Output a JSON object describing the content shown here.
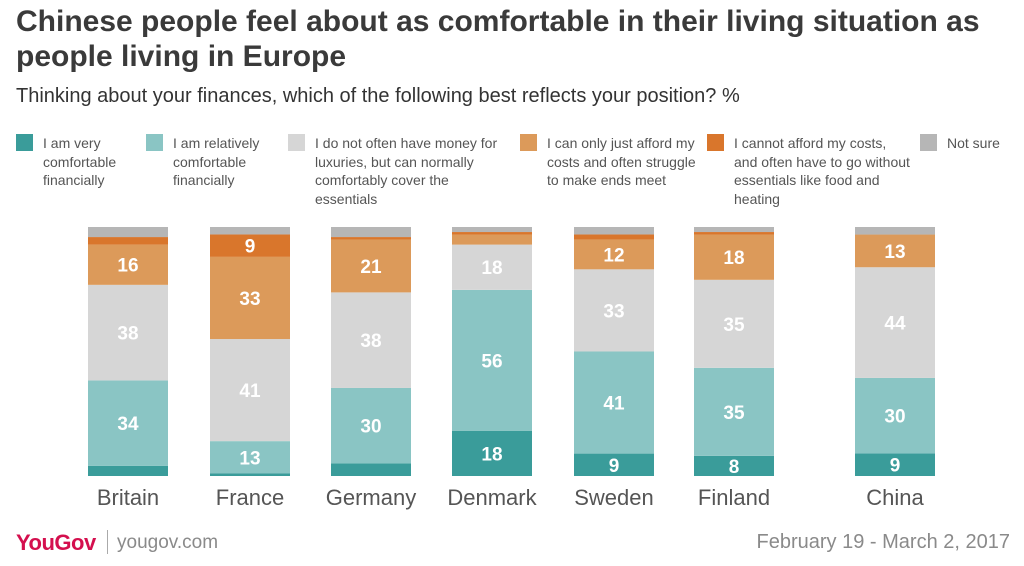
{
  "title": "Chinese people feel about as comfortable in their living situation as people living in Europe",
  "subtitle": "Thinking about your finances, which of the following best reflects your position? %",
  "legend": [
    {
      "label": "I am very comfortable financially",
      "color": "#3a9c9a"
    },
    {
      "label": "I am relatively comfortable financially",
      "color": "#8ac5c4"
    },
    {
      "label": "I do not often have money for luxuries, but can normally comfortably cover the essentials",
      "color": "#d6d6d6"
    },
    {
      "label": "I can only just afford my costs and often struggle to make ends meet",
      "color": "#dc9a5a"
    },
    {
      "label": "I cannot afford my costs, and often have to go without essentials like food and heating",
      "color": "#d9762c"
    },
    {
      "label": "Not sure",
      "color": "#b6b6b6"
    }
  ],
  "chart_data": {
    "type": "bar",
    "stacked": true,
    "categories": [
      "Britain",
      "France",
      "Germany",
      "Denmark",
      "Sweden",
      "Finland",
      "China"
    ],
    "series": [
      {
        "name": "I am very comfortable financially",
        "values": [
          4,
          1,
          5,
          18,
          9,
          8,
          9
        ]
      },
      {
        "name": "I am relatively comfortable financially",
        "values": [
          34,
          13,
          30,
          56,
          41,
          35,
          30
        ]
      },
      {
        "name": "I do not often have money for luxuries, but can normally comfortably cover the essentials",
        "values": [
          38,
          41,
          38,
          18,
          33,
          35,
          44
        ]
      },
      {
        "name": "I can only just afford my costs and often struggle to make ends meet",
        "values": [
          16,
          33,
          21,
          4,
          12,
          18,
          13
        ]
      },
      {
        "name": "I cannot afford my costs, and often have to go without essentials like food and heating",
        "values": [
          3,
          9,
          1,
          1,
          2,
          1,
          0
        ]
      },
      {
        "name": "Not sure",
        "values": [
          4,
          3,
          4,
          2,
          3,
          2,
          3
        ]
      }
    ],
    "ylim": [
      0,
      100
    ],
    "grid": false,
    "legend_position": "top"
  },
  "footer": {
    "brand": "YouGov",
    "site": "yougov.com",
    "date": "February 19 - March 2, 2017"
  }
}
